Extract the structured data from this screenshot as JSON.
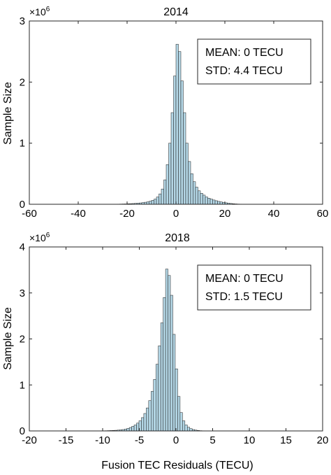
{
  "xlabel": "Fusion TEC Residuals (TECU)",
  "chart_data": [
    {
      "type": "bar",
      "title": "2014",
      "ylabel": "Sample Size",
      "y_exponent_label": "×10",
      "y_exponent_power": "6",
      "y_scale": 1000000,
      "xlim": [
        -60,
        60
      ],
      "ylim": [
        0,
        3
      ],
      "x_ticks": [
        "-60",
        "-40",
        "-20",
        "0",
        "20",
        "40",
        "60"
      ],
      "y_ticks": [
        "0",
        "1",
        "2",
        "3"
      ],
      "stats": {
        "mean": "MEAN: 0 TECU",
        "std": "STD: 4.4 TECU"
      },
      "bin_start": -24,
      "bin_width": 1,
      "values": [
        0.003,
        0.004,
        0.005,
        0.006,
        0.008,
        0.01,
        0.012,
        0.015,
        0.018,
        0.022,
        0.027,
        0.033,
        0.04,
        0.05,
        0.065,
        0.085,
        0.12,
        0.17,
        0.25,
        0.4,
        0.65,
        1.0,
        1.5,
        2.1,
        2.62,
        2.5,
        2.02,
        1.5,
        1.0,
        0.7,
        0.5,
        0.37,
        0.28,
        0.22,
        0.18,
        0.15,
        0.12,
        0.1,
        0.085,
        0.07,
        0.058,
        0.047,
        0.038,
        0.03,
        0.024,
        0.018,
        0.013,
        0.009,
        0.006,
        0.004,
        0.003
      ]
    },
    {
      "type": "bar",
      "title": "2018",
      "ylabel": "Sample Size",
      "y_exponent_label": "×10",
      "y_exponent_power": "6",
      "y_scale": 1000000,
      "xlim": [
        -20,
        20
      ],
      "ylim": [
        0,
        4
      ],
      "x_ticks": [
        "-20",
        "-15",
        "-10",
        "-5",
        "0",
        "5",
        "10",
        "15",
        "20"
      ],
      "y_ticks": [
        "0",
        "1",
        "2",
        "3",
        "4"
      ],
      "stats": {
        "mean": "MEAN: 0 TECU",
        "std": "STD: 1.5 TECU"
      },
      "bin_start": -10,
      "bin_width": 0.33,
      "values": [
        0.004,
        0.005,
        0.007,
        0.009,
        0.011,
        0.014,
        0.018,
        0.023,
        0.03,
        0.04,
        0.055,
        0.075,
        0.1,
        0.13,
        0.17,
        0.22,
        0.29,
        0.38,
        0.5,
        0.66,
        0.86,
        1.12,
        1.45,
        1.85,
        2.35,
        2.9,
        3.52,
        3.38,
        2.95,
        2.1,
        1.35,
        0.75,
        0.4,
        0.22,
        0.13,
        0.08,
        0.05,
        0.03,
        0.018,
        0.01,
        0.006,
        0.004
      ]
    }
  ]
}
